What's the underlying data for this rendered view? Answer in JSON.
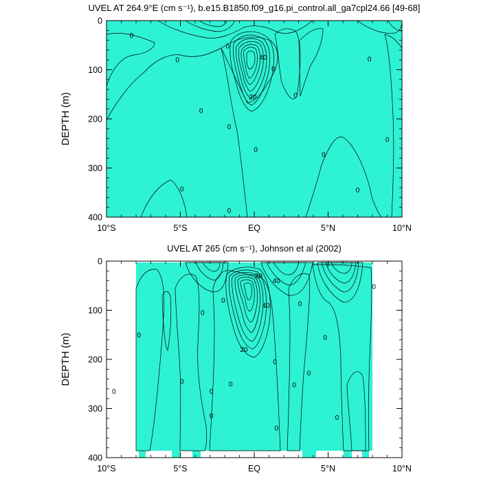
{
  "chart_data": [
    {
      "type": "contour",
      "title": "UVEL AT 264.9°E (cm s⁻¹), b.e15.B1850.f09_g16.pi_control.all_ga7cpl24.66 [49-68]",
      "ylabel": "DEPTH (m)",
      "xlim": [
        -10,
        10
      ],
      "ylim": [
        400,
        0
      ],
      "x_ticks": [
        -10,
        -5,
        0,
        5,
        10
      ],
      "x_tick_labels": [
        "10°S",
        "5°S",
        "EQ",
        "5°N",
        "10°N"
      ],
      "y_ticks": [
        0,
        100,
        200,
        300,
        400
      ],
      "y_tick_labels": [
        "0",
        "100",
        "200",
        "300",
        "400"
      ],
      "contour_labels": [
        {
          "text": "0",
          "x": -8.3,
          "y": 30
        },
        {
          "text": "0",
          "x": -5.2,
          "y": 80
        },
        {
          "text": "0",
          "x": -3.6,
          "y": 183
        },
        {
          "text": "0",
          "x": -1.8,
          "y": 52
        },
        {
          "text": "0",
          "x": -1.7,
          "y": 216
        },
        {
          "text": "0",
          "x": -4.9,
          "y": 343
        },
        {
          "text": "0",
          "x": -1.7,
          "y": 387
        },
        {
          "text": "0",
          "x": 0.1,
          "y": 262
        },
        {
          "text": "0",
          "x": 1.3,
          "y": 98
        },
        {
          "text": "0",
          "x": 2.8,
          "y": 152
        },
        {
          "text": "0",
          "x": 4.7,
          "y": 273
        },
        {
          "text": "0",
          "x": 7.0,
          "y": 345
        },
        {
          "text": "0",
          "x": 7.8,
          "y": 78
        },
        {
          "text": "0",
          "x": 9.0,
          "y": 242
        },
        {
          "text": "20",
          "x": -0.1,
          "y": 155
        },
        {
          "text": "40",
          "x": 0.6,
          "y": 75
        }
      ]
    },
    {
      "type": "contour",
      "title": "UVEL AT 265 (cm s⁻¹), Johnson et al (2002)",
      "ylabel": "DEPTH (m)",
      "xlim": [
        -10,
        10
      ],
      "ylim": [
        400,
        0
      ],
      "x_ticks": [
        -10,
        -5,
        0,
        5,
        10
      ],
      "x_tick_labels": [
        "10°S",
        "5°S",
        "EQ",
        "5°N",
        "10°N"
      ],
      "y_ticks": [
        0,
        100,
        200,
        300,
        400
      ],
      "y_tick_labels": [
        "0",
        "100",
        "200",
        "300",
        "400"
      ],
      "contour_labels": [
        {
          "text": "0",
          "x": -7.8,
          "y": 150
        },
        {
          "text": "0",
          "x": -4.9,
          "y": 245
        },
        {
          "text": "0",
          "x": -3.5,
          "y": 105
        },
        {
          "text": "0",
          "x": -2.1,
          "y": 80
        },
        {
          "text": "0",
          "x": -1.6,
          "y": 250
        },
        {
          "text": "0",
          "x": -2.9,
          "y": 265
        },
        {
          "text": "0",
          "x": -2.9,
          "y": 315
        },
        {
          "text": "0",
          "x": -9.5,
          "y": 265
        },
        {
          "text": "0",
          "x": 1.4,
          "y": 205
        },
        {
          "text": "0",
          "x": 1.5,
          "y": 340
        },
        {
          "text": "0",
          "x": 3.1,
          "y": 87
        },
        {
          "text": "0",
          "x": 2.7,
          "y": 252
        },
        {
          "text": "0",
          "x": 3.7,
          "y": 228
        },
        {
          "text": "0",
          "x": 4.8,
          "y": 155
        },
        {
          "text": "0",
          "x": 5.6,
          "y": 318
        },
        {
          "text": "0",
          "x": 8.1,
          "y": 52
        },
        {
          "text": "20",
          "x": 0.3,
          "y": 30
        },
        {
          "text": "40",
          "x": 1.5,
          "y": 40
        },
        {
          "text": "40",
          "x": 0.8,
          "y": 90
        },
        {
          "text": "20",
          "x": -0.7,
          "y": 180
        }
      ]
    }
  ]
}
